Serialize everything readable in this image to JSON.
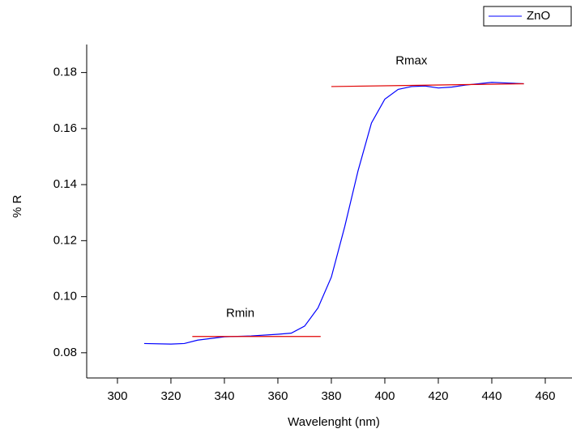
{
  "chart_data": {
    "type": "line",
    "x_label": "Wavelenght (nm)",
    "y_label": "% R",
    "x": [
      310,
      320,
      325,
      330,
      340,
      350,
      360,
      365,
      370,
      375,
      380,
      385,
      390,
      395,
      400,
      405,
      410,
      415,
      420,
      425,
      430,
      440,
      445,
      452
    ],
    "series": [
      {
        "name": "ZnO",
        "color": "#0000ff",
        "values": [
          0.0833,
          0.0831,
          0.0833,
          0.0845,
          0.0857,
          0.086,
          0.0866,
          0.087,
          0.0895,
          0.096,
          0.107,
          0.125,
          0.145,
          0.162,
          0.1705,
          0.174,
          0.175,
          0.1752,
          0.1745,
          0.1748,
          0.1755,
          0.1765,
          0.1763,
          0.176
        ]
      }
    ],
    "reference_lines": [
      {
        "label": "Rmax",
        "color": "#e00000",
        "x": [
          380,
          452
        ],
        "values": [
          0.175,
          0.176
        ]
      },
      {
        "label": "Rmin",
        "color": "#e00000",
        "x": [
          328,
          376
        ],
        "values": [
          0.0858,
          0.0858
        ]
      }
    ],
    "xlim": [
      288.5,
      470
    ],
    "ylim": [
      0.071,
      0.19
    ],
    "xticks": [
      300,
      320,
      340,
      360,
      380,
      400,
      420,
      440,
      460
    ],
    "yticks": [
      0.08,
      {
        "value": 0.1,
        "label": "0.10"
      },
      0.12,
      0.14,
      0.16,
      0.18
    ],
    "legend": "upper right"
  }
}
